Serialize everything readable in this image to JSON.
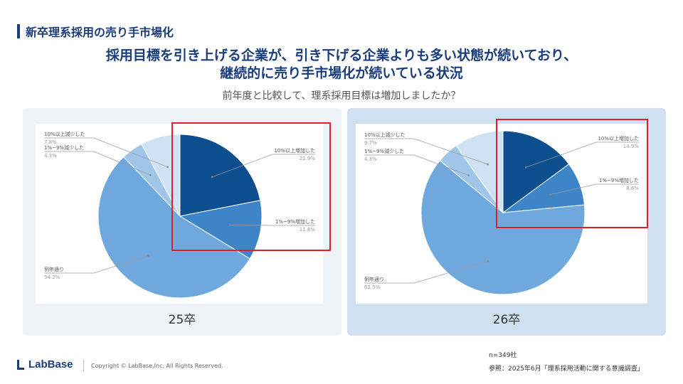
{
  "section_title": "新卒理系採用の売り手市場化",
  "headline": {
    "line1": "採用目標を引き上げる企業が、引き下げる企業よりも多い状態が続いており、",
    "line2": "継続的に売り手市場化が続いている状況"
  },
  "question": "前年度と比較して、理系採用目標は増加しましたか？",
  "colors": {
    "increase_10": "#0d4e8e",
    "increase_1_9": "#3d85c6",
    "same": "#6fa8dc",
    "decrease_1_9": "#9fc5e8",
    "decrease_10": "#cfe2f3",
    "highlight": "#e0202a",
    "title": "#1a3d7c"
  },
  "chart_data": [
    {
      "type": "pie",
      "label": "25卒",
      "start_angle_deg": 0,
      "direction": "clockwise",
      "slices": [
        {
          "name": "10%以上増加した",
          "value": 21.9,
          "display": "21.9%",
          "color_key": "increase_10"
        },
        {
          "name": "1%~9%増加した",
          "value": 11.8,
          "display": "11.8%",
          "color_key": "increase_1_9"
        },
        {
          "name": "例年通り",
          "value": 54.2,
          "display": "54.2%",
          "color_key": "same"
        },
        {
          "name": "1%~9%減少した",
          "value": 4.3,
          "display": "4.3%",
          "color_key": "decrease_1_9"
        },
        {
          "name": "10%以上減少した",
          "value": 7.8,
          "display": "7.8%",
          "color_key": "decrease_10"
        }
      ]
    },
    {
      "type": "pie",
      "label": "26卒",
      "start_angle_deg": 0,
      "direction": "clockwise",
      "slices": [
        {
          "name": "10%以上増加した",
          "value": 14.9,
          "display": "14.9%",
          "color_key": "increase_10"
        },
        {
          "name": "1%~9%増加した",
          "value": 8.6,
          "display": "8.6%",
          "color_key": "increase_1_9"
        },
        {
          "name": "例年通り",
          "value": 62.5,
          "display": "62.5%",
          "color_key": "same"
        },
        {
          "name": "1%~9%減少した",
          "value": 4.3,
          "display": "4.3%",
          "color_key": "decrease_1_9"
        },
        {
          "name": "10%以上減少した",
          "value": 9.7,
          "display": "9.7%",
          "color_key": "decrease_10"
        }
      ]
    }
  ],
  "footer": {
    "logo_text": "LabBase",
    "copyright": "Copyright ©  LabBase,Inc. All Rights Reserved.",
    "sample_size": "n=349社",
    "source": "参照：2025年6月「理系採用活動に関する意識調査」"
  }
}
